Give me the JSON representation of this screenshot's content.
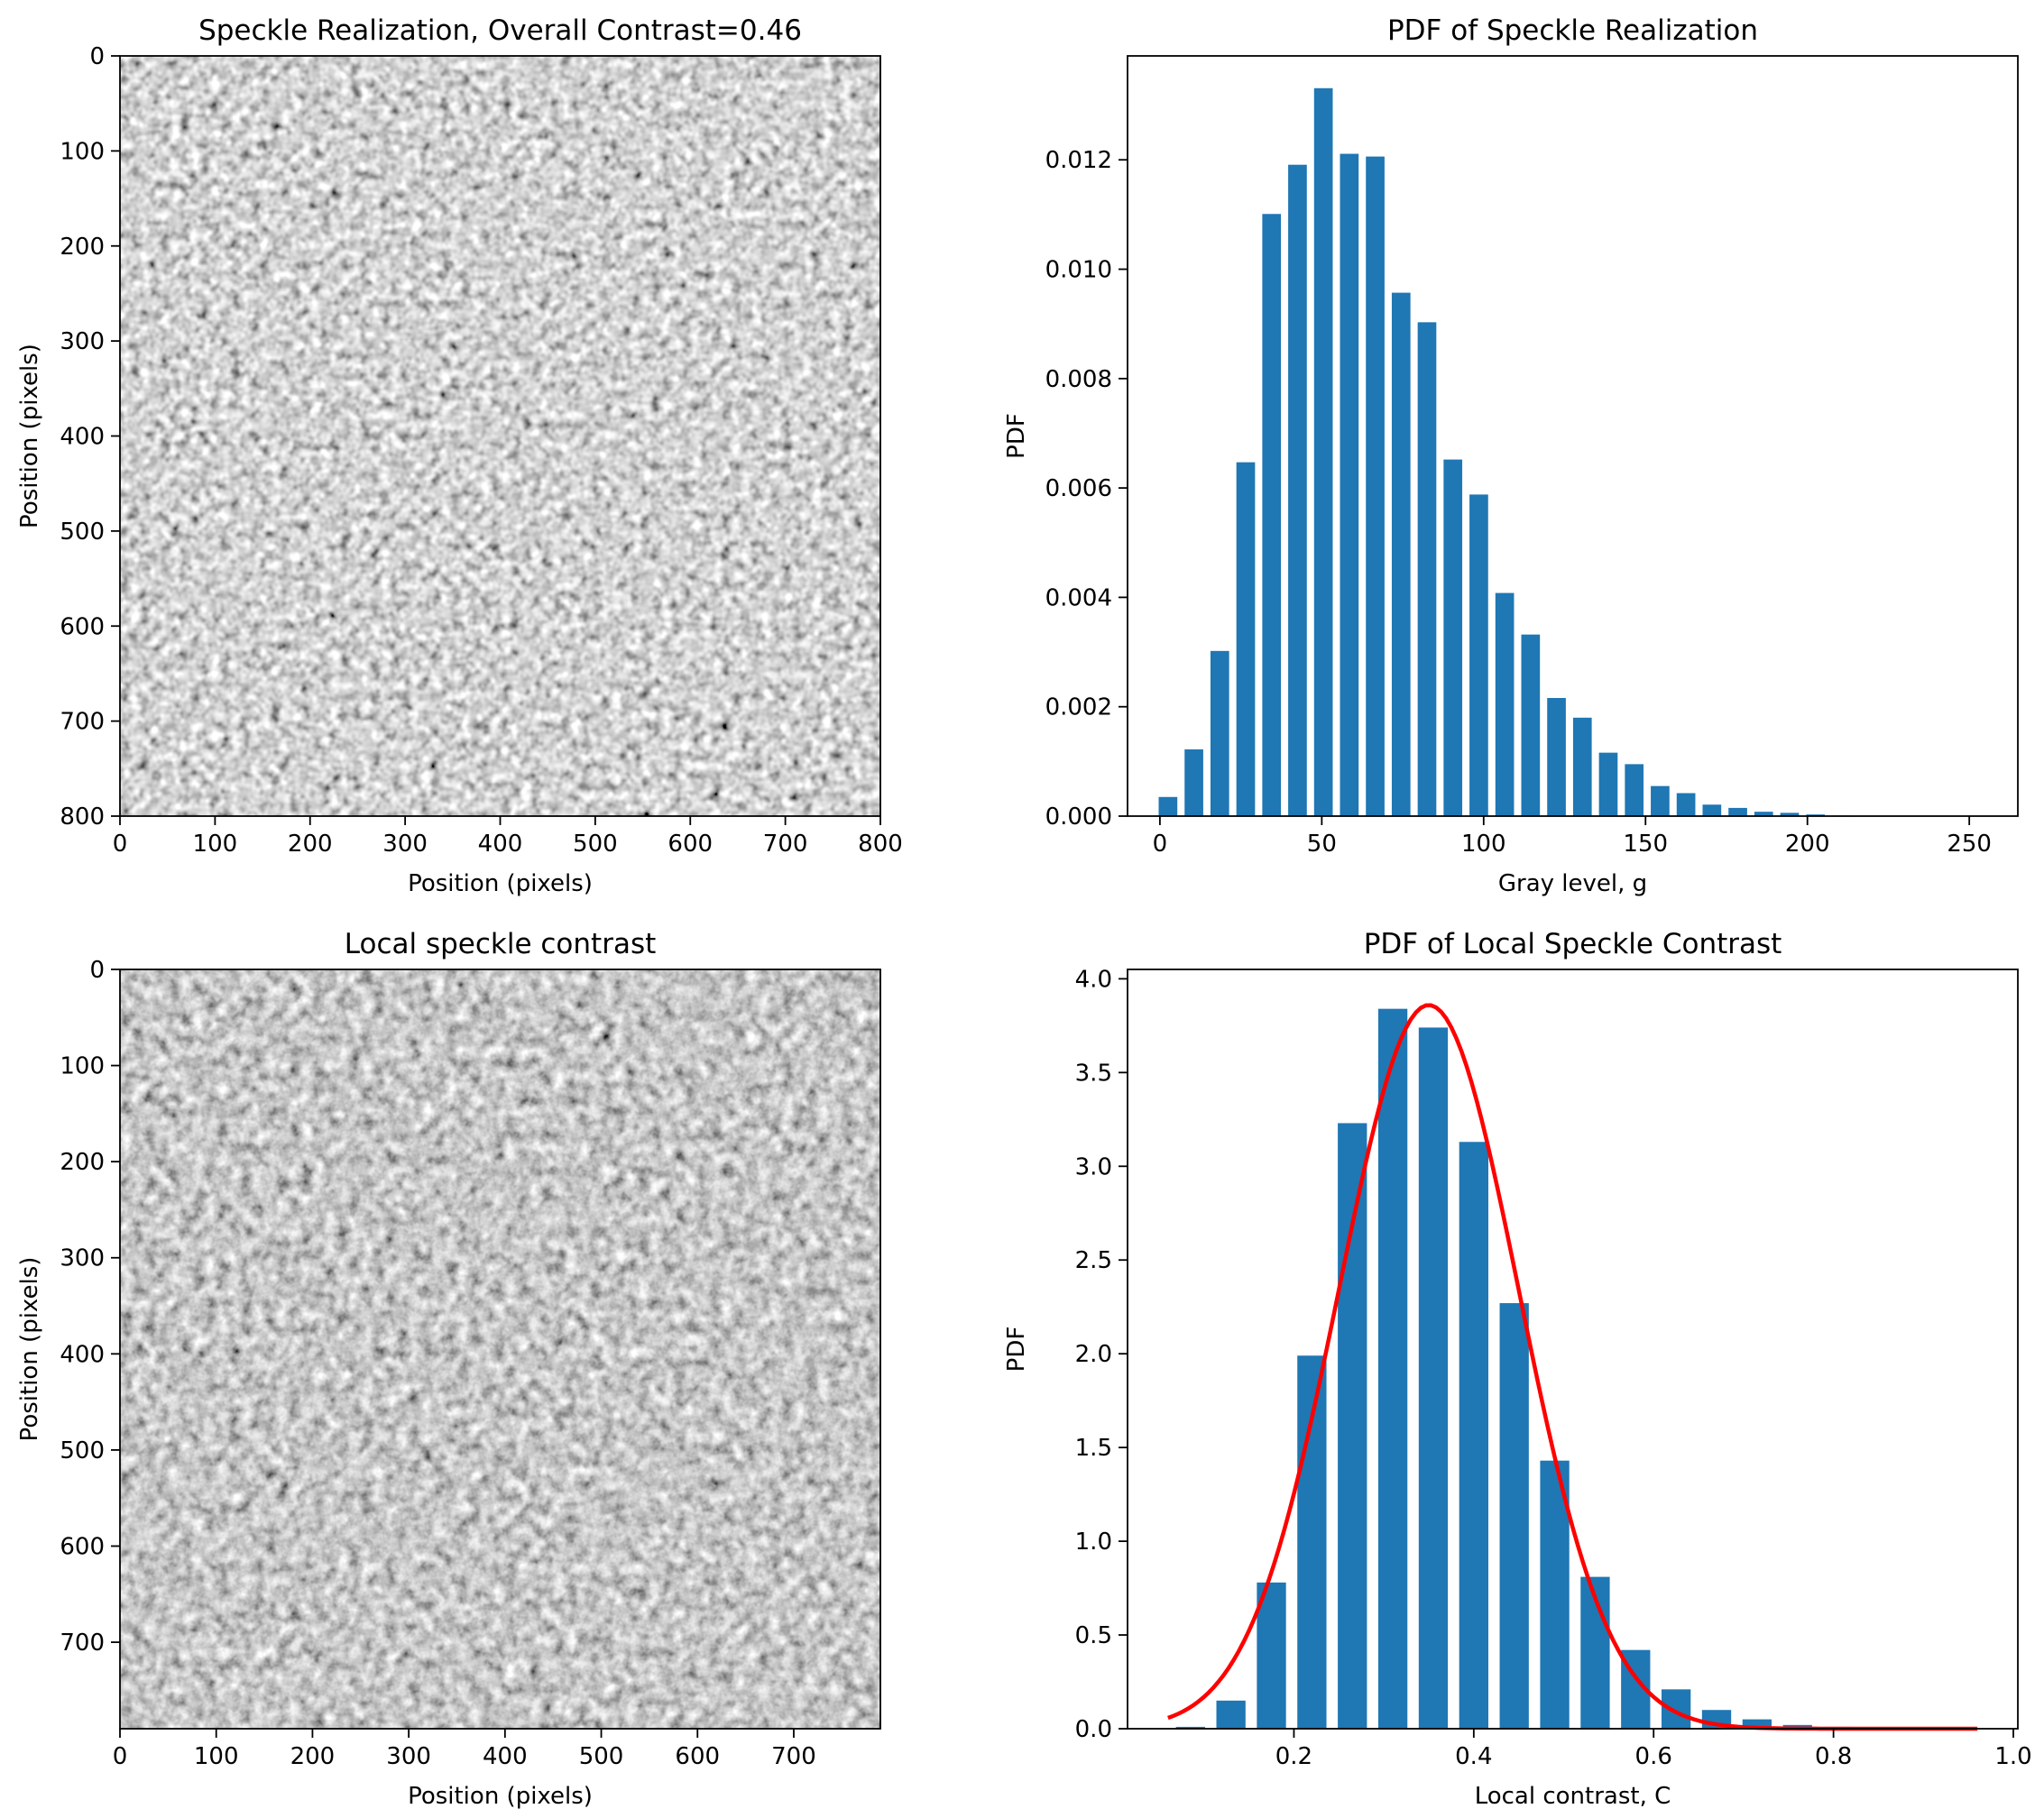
{
  "chart_data": [
    {
      "type": "heatmap",
      "title": "Speckle Realization, Overall Contrast=0.46",
      "xlabel": "Position (pixels)",
      "ylabel": "Position (pixels)",
      "xlim": [
        0,
        800
      ],
      "ylim": [
        800,
        0
      ],
      "xticks": [
        "0",
        "100",
        "200",
        "300",
        "400",
        "500",
        "600",
        "700",
        "800"
      ],
      "yticks": [
        "0",
        "100",
        "200",
        "300",
        "400",
        "500",
        "600",
        "700",
        "800"
      ],
      "colormap": "gray"
    },
    {
      "type": "bar",
      "title": "PDF of Speckle Realization",
      "xlabel": "Gray level, g",
      "ylabel": "PDF",
      "xlim": [
        -10,
        265
      ],
      "ylim": [
        0,
        0.0139
      ],
      "xticks": [
        "0",
        "50",
        "100",
        "150",
        "200",
        "250"
      ],
      "yticks": [
        "0.000",
        "0.002",
        "0.004",
        "0.006",
        "0.008",
        "0.010",
        "0.012"
      ],
      "bar_color": "#1f77b4",
      "x": [
        2.5,
        10.5,
        18.5,
        26.5,
        34.5,
        42.5,
        50.5,
        58.5,
        66.5,
        74.5,
        82.5,
        90.5,
        98.5,
        106.5,
        114.5,
        122.5,
        130.5,
        138.5,
        146.5,
        154.5,
        162.5,
        170.5,
        178.5,
        186.5,
        194.5,
        202.5,
        210.5,
        218.5
      ],
      "values": [
        0.00035,
        0.00122,
        0.00302,
        0.00647,
        0.01101,
        0.01191,
        0.01331,
        0.01211,
        0.01206,
        0.00957,
        0.00903,
        0.00652,
        0.00588,
        0.00408,
        0.00332,
        0.00216,
        0.0018,
        0.00116,
        0.00095,
        0.00055,
        0.00042,
        0.00021,
        0.00015,
        8e-05,
        6e-05,
        3e-05,
        1e-05,
        5e-06
      ]
    },
    {
      "type": "heatmap",
      "title": "Local speckle contrast",
      "xlabel": "Position (pixels)",
      "ylabel": "Position (pixels)",
      "xlim": [
        0,
        790
      ],
      "ylim": [
        790,
        0
      ],
      "xticks": [
        "0",
        "100",
        "200",
        "300",
        "400",
        "500",
        "600",
        "700"
      ],
      "yticks": [
        "0",
        "100",
        "200",
        "300",
        "400",
        "500",
        "600",
        "700"
      ],
      "colormap": "gray"
    },
    {
      "type": "bar",
      "title": "PDF of Local Speckle Contrast",
      "xlabel": "Local contrast, C",
      "ylabel": "PDF",
      "xlim": [
        0.015,
        1.005
      ],
      "ylim": [
        0,
        4.05
      ],
      "xticks": [
        "0.2",
        "0.4",
        "0.6",
        "0.8",
        "1.0"
      ],
      "yticks": [
        "0.0",
        "0.5",
        "1.0",
        "1.5",
        "2.0",
        "2.5",
        "3.0",
        "3.5",
        "4.0"
      ],
      "bar_color": "#1f77b4",
      "x": [
        0.085,
        0.13,
        0.175,
        0.22,
        0.265,
        0.31,
        0.355,
        0.4,
        0.445,
        0.49,
        0.535,
        0.58,
        0.625,
        0.67,
        0.715,
        0.76,
        0.805,
        0.85,
        0.895,
        0.94
      ],
      "values": [
        0.01,
        0.15,
        0.78,
        1.99,
        3.23,
        3.84,
        3.74,
        3.13,
        2.27,
        1.43,
        0.81,
        0.42,
        0.21,
        0.1,
        0.05,
        0.02,
        0.01,
        0.005,
        0.003,
        0.002
      ],
      "fit_curve": {
        "type": "gaussian",
        "color": "#ff0000",
        "x_start": 0.06,
        "x_end": 0.96,
        "peak": 3.86,
        "mean": 0.35,
        "sigma": 0.1
      }
    }
  ]
}
